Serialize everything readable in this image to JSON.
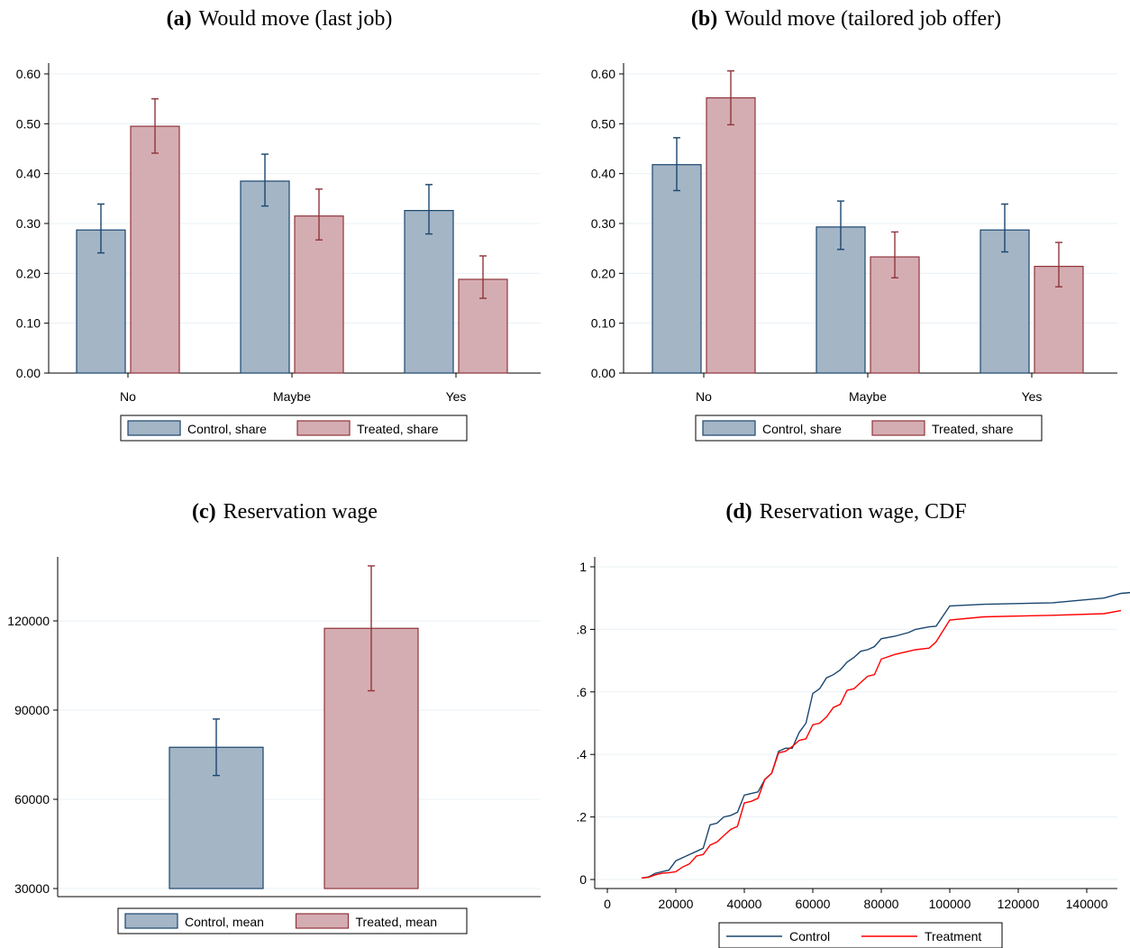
{
  "colors": {
    "control_fill": "#a4b5c6",
    "control_stroke": "#1a476f",
    "treated_fill": "#d4adb2",
    "treated_stroke": "#90353b",
    "cdf_control": "#1a476f",
    "cdf_treatment": "#ff0000",
    "grid": "#eaf0f4",
    "axis": "#000000"
  },
  "chart_data": [
    {
      "id": "a",
      "type": "bar",
      "panel_letter": "(a)",
      "title": "Would move (last job)",
      "categories": [
        "No",
        "Maybe",
        "Yes"
      ],
      "ylim": [
        0,
        0.6
      ],
      "yticks": [
        "0.00",
        "0.10",
        "0.20",
        "0.30",
        "0.40",
        "0.50",
        "0.60"
      ],
      "ytick_values": [
        0,
        0.1,
        0.2,
        0.3,
        0.4,
        0.5,
        0.6
      ],
      "grid": true,
      "series": [
        {
          "name": "Control, share",
          "values": [
            0.287,
            0.385,
            0.326
          ],
          "ci_low": [
            0.241,
            0.335,
            0.279
          ],
          "ci_high": [
            0.339,
            0.439,
            0.378
          ]
        },
        {
          "name": "Treated, share",
          "values": [
            0.495,
            0.315,
            0.188
          ],
          "ci_low": [
            0.441,
            0.267,
            0.15
          ],
          "ci_high": [
            0.55,
            0.369,
            0.235
          ]
        }
      ],
      "legend": "bottom"
    },
    {
      "id": "b",
      "type": "bar",
      "panel_letter": "(b)",
      "title": "Would move (tailored job offer)",
      "categories": [
        "No",
        "Maybe",
        "Yes"
      ],
      "ylim": [
        0,
        0.6
      ],
      "yticks": [
        "0.00",
        "0.10",
        "0.20",
        "0.30",
        "0.40",
        "0.50",
        "0.60"
      ],
      "ytick_values": [
        0,
        0.1,
        0.2,
        0.3,
        0.4,
        0.5,
        0.6
      ],
      "grid": true,
      "series": [
        {
          "name": "Control, share",
          "values": [
            0.418,
            0.293,
            0.287
          ],
          "ci_low": [
            0.366,
            0.248,
            0.243
          ],
          "ci_high": [
            0.472,
            0.345,
            0.339
          ]
        },
        {
          "name": "Treated, share",
          "values": [
            0.552,
            0.233,
            0.214
          ],
          "ci_low": [
            0.498,
            0.191,
            0.173
          ],
          "ci_high": [
            0.606,
            0.283,
            0.262
          ]
        }
      ],
      "legend": "bottom"
    },
    {
      "id": "c",
      "type": "bar",
      "panel_letter": "(c)",
      "title": "Reservation wage",
      "categories": [
        ""
      ],
      "ylim": [
        30000,
        120000
      ],
      "yticks": [
        "30000",
        "60000",
        "90000",
        "120000"
      ],
      "ytick_values": [
        30000,
        60000,
        90000,
        120000
      ],
      "grid": true,
      "series": [
        {
          "name": "Control, mean",
          "values": [
            77500
          ],
          "ci_low": [
            68000
          ],
          "ci_high": [
            87000
          ]
        },
        {
          "name": "Treated, mean",
          "values": [
            117500
          ],
          "ci_low": [
            96500
          ],
          "ci_high": [
            138500
          ]
        }
      ],
      "legend": "bottom"
    },
    {
      "id": "d",
      "type": "line",
      "panel_letter": "(d)",
      "title": "Reservation wage, CDF",
      "xlim": [
        0,
        150000
      ],
      "xticks": [
        "0",
        "20000",
        "40000",
        "60000",
        "80000",
        "100000",
        "120000",
        "140000"
      ],
      "xtick_values": [
        0,
        20000,
        40000,
        60000,
        80000,
        100000,
        120000,
        140000
      ],
      "ylim": [
        0,
        1
      ],
      "yticks": [
        "0",
        ".2",
        ".4",
        ".6",
        ".8",
        "1"
      ],
      "ytick_values": [
        0,
        0.2,
        0.4,
        0.6,
        0.8,
        1
      ],
      "grid": true,
      "series": [
        {
          "name": "Control",
          "x": [
            10000,
            12000,
            14000,
            16000,
            18000,
            20000,
            22000,
            24000,
            26000,
            28000,
            30000,
            32000,
            34000,
            36000,
            38000,
            40000,
            42000,
            44000,
            46000,
            48000,
            50000,
            52000,
            54000,
            56000,
            58000,
            60000,
            62000,
            64000,
            66000,
            68000,
            70000,
            72000,
            74000,
            76000,
            78000,
            80000,
            84000,
            88000,
            90000,
            94000,
            96000,
            100000,
            110000,
            130000,
            145000,
            150000,
            153000
          ],
          "y": [
            0.005,
            0.008,
            0.02,
            0.025,
            0.03,
            0.06,
            0.07,
            0.08,
            0.09,
            0.1,
            0.175,
            0.18,
            0.2,
            0.205,
            0.215,
            0.27,
            0.275,
            0.28,
            0.32,
            0.34,
            0.41,
            0.42,
            0.42,
            0.47,
            0.5,
            0.595,
            0.61,
            0.645,
            0.655,
            0.67,
            0.695,
            0.71,
            0.73,
            0.735,
            0.745,
            0.77,
            0.778,
            0.79,
            0.8,
            0.808,
            0.81,
            0.875,
            0.88,
            0.885,
            0.9,
            0.915,
            0.918
          ]
        },
        {
          "name": "Treatment",
          "x": [
            10000,
            12000,
            14000,
            16000,
            18000,
            20000,
            22000,
            24000,
            26000,
            28000,
            30000,
            32000,
            34000,
            36000,
            38000,
            40000,
            42000,
            44000,
            46000,
            48000,
            50000,
            52000,
            54000,
            56000,
            58000,
            60000,
            62000,
            64000,
            66000,
            68000,
            70000,
            72000,
            74000,
            76000,
            78000,
            80000,
            84000,
            88000,
            90000,
            94000,
            96000,
            100000,
            110000,
            130000,
            145000,
            150000
          ],
          "y": [
            0.005,
            0.007,
            0.015,
            0.02,
            0.022,
            0.025,
            0.04,
            0.05,
            0.075,
            0.08,
            0.11,
            0.12,
            0.14,
            0.16,
            0.17,
            0.245,
            0.25,
            0.26,
            0.32,
            0.34,
            0.405,
            0.41,
            0.425,
            0.445,
            0.45,
            0.495,
            0.5,
            0.52,
            0.55,
            0.56,
            0.605,
            0.61,
            0.63,
            0.65,
            0.655,
            0.705,
            0.72,
            0.73,
            0.735,
            0.74,
            0.76,
            0.83,
            0.84,
            0.845,
            0.85,
            0.86
          ]
        }
      ],
      "legend": "bottom"
    }
  ]
}
